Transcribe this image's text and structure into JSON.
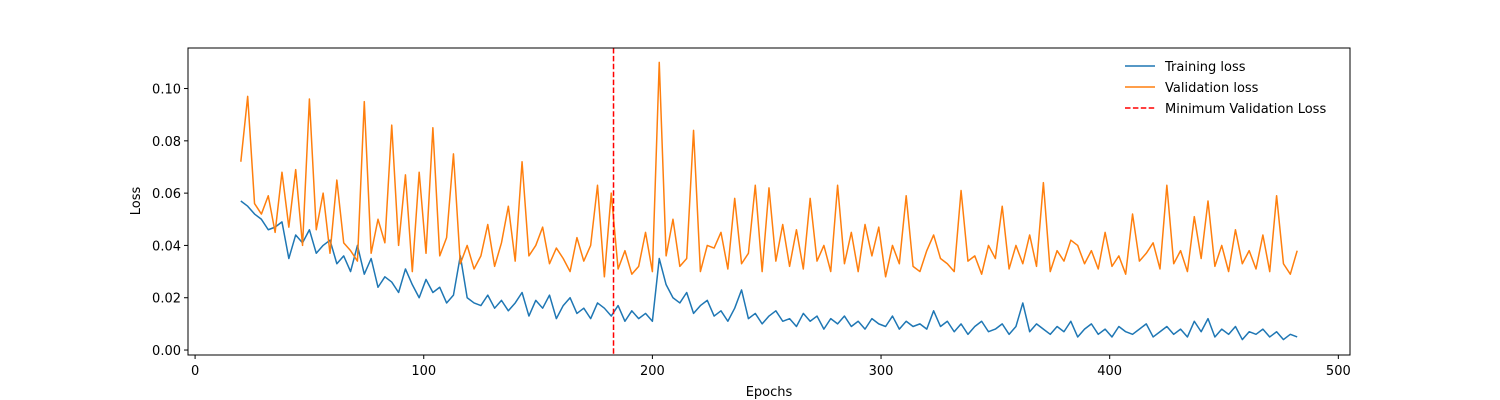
{
  "chart_data": {
    "type": "line",
    "x_label": "Epochs",
    "y_label": "Loss",
    "x": [
      20,
      23,
      26,
      29,
      32,
      35,
      38,
      41,
      44,
      47,
      50,
      53,
      56,
      59,
      62,
      65,
      68,
      71,
      74,
      77,
      80,
      83,
      86,
      89,
      92,
      95,
      98,
      101,
      104,
      107,
      110,
      113,
      116,
      119,
      122,
      125,
      128,
      131,
      134,
      137,
      140,
      143,
      146,
      149,
      152,
      155,
      158,
      161,
      164,
      167,
      170,
      173,
      176,
      179,
      182,
      185,
      188,
      191,
      194,
      197,
      200,
      203,
      206,
      209,
      212,
      215,
      218,
      221,
      224,
      227,
      230,
      233,
      236,
      239,
      242,
      245,
      248,
      251,
      254,
      257,
      260,
      263,
      266,
      269,
      272,
      275,
      278,
      281,
      284,
      287,
      290,
      293,
      296,
      299,
      302,
      305,
      308,
      311,
      314,
      317,
      320,
      323,
      326,
      329,
      332,
      335,
      338,
      341,
      344,
      347,
      350,
      353,
      356,
      359,
      362,
      365,
      368,
      371,
      374,
      377,
      380,
      383,
      386,
      389,
      392,
      395,
      398,
      401,
      404,
      407,
      410,
      413,
      416,
      419,
      422,
      425,
      428,
      431,
      434,
      437,
      440,
      443,
      446,
      449,
      452,
      455,
      458,
      461,
      464,
      467,
      470,
      473,
      476,
      479,
      482
    ],
    "series": [
      {
        "name": "Training loss",
        "color": "#1f77b4",
        "values": [
          0.057,
          0.055,
          0.052,
          0.05,
          0.046,
          0.047,
          0.049,
          0.035,
          0.044,
          0.041,
          0.046,
          0.037,
          0.04,
          0.042,
          0.033,
          0.036,
          0.03,
          0.04,
          0.029,
          0.035,
          0.024,
          0.028,
          0.026,
          0.022,
          0.031,
          0.025,
          0.02,
          0.027,
          0.022,
          0.024,
          0.018,
          0.021,
          0.036,
          0.02,
          0.018,
          0.017,
          0.021,
          0.016,
          0.019,
          0.015,
          0.018,
          0.022,
          0.013,
          0.019,
          0.016,
          0.021,
          0.012,
          0.017,
          0.02,
          0.014,
          0.016,
          0.012,
          0.018,
          0.016,
          0.013,
          0.017,
          0.011,
          0.015,
          0.012,
          0.014,
          0.011,
          0.035,
          0.025,
          0.02,
          0.018,
          0.022,
          0.014,
          0.017,
          0.019,
          0.013,
          0.015,
          0.011,
          0.016,
          0.023,
          0.012,
          0.014,
          0.01,
          0.013,
          0.015,
          0.011,
          0.012,
          0.009,
          0.014,
          0.011,
          0.013,
          0.008,
          0.012,
          0.01,
          0.013,
          0.009,
          0.011,
          0.008,
          0.012,
          0.01,
          0.009,
          0.013,
          0.008,
          0.011,
          0.009,
          0.01,
          0.008,
          0.015,
          0.009,
          0.011,
          0.007,
          0.01,
          0.006,
          0.009,
          0.011,
          0.007,
          0.008,
          0.01,
          0.006,
          0.009,
          0.018,
          0.007,
          0.01,
          0.008,
          0.006,
          0.009,
          0.007,
          0.011,
          0.005,
          0.008,
          0.01,
          0.006,
          0.008,
          0.005,
          0.009,
          0.007,
          0.006,
          0.008,
          0.01,
          0.005,
          0.007,
          0.009,
          0.006,
          0.008,
          0.005,
          0.011,
          0.007,
          0.012,
          0.005,
          0.008,
          0.006,
          0.009,
          0.004,
          0.007,
          0.006,
          0.008,
          0.005,
          0.007,
          0.004,
          0.006,
          0.005
        ]
      },
      {
        "name": "Validation loss",
        "color": "#ff7f0e",
        "values": [
          0.072,
          0.097,
          0.056,
          0.052,
          0.059,
          0.045,
          0.068,
          0.047,
          0.069,
          0.04,
          0.096,
          0.046,
          0.06,
          0.037,
          0.065,
          0.041,
          0.038,
          0.034,
          0.095,
          0.037,
          0.05,
          0.041,
          0.086,
          0.04,
          0.067,
          0.03,
          0.068,
          0.037,
          0.085,
          0.036,
          0.043,
          0.075,
          0.033,
          0.04,
          0.031,
          0.036,
          0.048,
          0.032,
          0.041,
          0.055,
          0.034,
          0.072,
          0.036,
          0.04,
          0.047,
          0.033,
          0.039,
          0.035,
          0.03,
          0.043,
          0.034,
          0.04,
          0.063,
          0.028,
          0.06,
          0.031,
          0.038,
          0.029,
          0.032,
          0.045,
          0.03,
          0.11,
          0.036,
          0.05,
          0.032,
          0.035,
          0.084,
          0.03,
          0.04,
          0.039,
          0.045,
          0.031,
          0.058,
          0.033,
          0.037,
          0.063,
          0.03,
          0.062,
          0.034,
          0.048,
          0.032,
          0.046,
          0.031,
          0.058,
          0.034,
          0.04,
          0.03,
          0.063,
          0.033,
          0.045,
          0.03,
          0.048,
          0.036,
          0.047,
          0.028,
          0.04,
          0.033,
          0.059,
          0.032,
          0.03,
          0.038,
          0.044,
          0.035,
          0.033,
          0.03,
          0.061,
          0.034,
          0.036,
          0.029,
          0.04,
          0.035,
          0.055,
          0.031,
          0.04,
          0.033,
          0.044,
          0.032,
          0.064,
          0.03,
          0.038,
          0.034,
          0.042,
          0.04,
          0.033,
          0.038,
          0.031,
          0.045,
          0.032,
          0.036,
          0.029,
          0.052,
          0.034,
          0.037,
          0.041,
          0.031,
          0.063,
          0.033,
          0.038,
          0.03,
          0.051,
          0.035,
          0.057,
          0.032,
          0.04,
          0.03,
          0.046,
          0.033,
          0.038,
          0.031,
          0.044,
          0.03,
          0.059,
          0.033,
          0.029,
          0.038
        ]
      }
    ],
    "vline": {
      "x": 183,
      "label": "Minimum Validation Loss",
      "color": "#ff0000"
    },
    "xlim": [
      -3.1,
      505.1
    ],
    "xticks": [
      0,
      100,
      200,
      300,
      400,
      500
    ],
    "ylim": [
      -0.0019,
      0.1155
    ],
    "yticks": [
      {
        "value": 0,
        "label": "0.00"
      },
      {
        "value": 0.02,
        "label": "0.02"
      },
      {
        "value": 0.04,
        "label": "0.04"
      },
      {
        "value": 0.06,
        "label": "0.06"
      },
      {
        "value": 0.08,
        "label": "0.08"
      },
      {
        "value": 0.1,
        "label": "0.10"
      }
    ],
    "legend": "upper right",
    "grid": false
  }
}
